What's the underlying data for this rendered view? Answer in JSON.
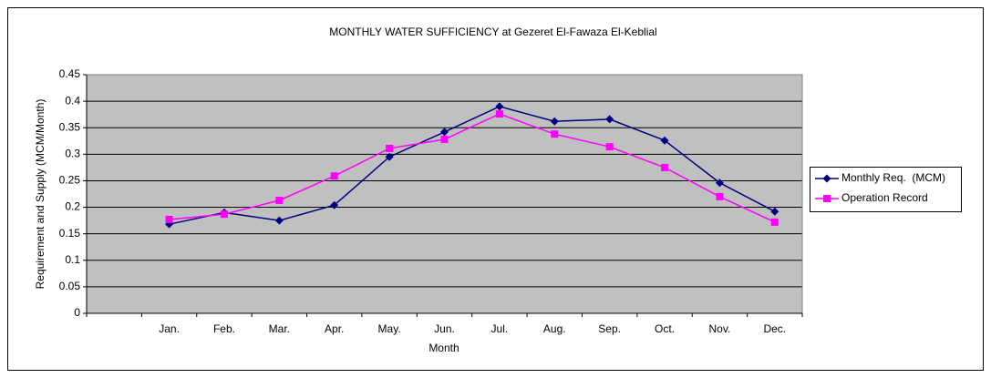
{
  "chart_data": {
    "type": "line",
    "title": "MONTHLY WATER SUFFICIENCY at Gezeret El-Fawaza El-Keblial",
    "xlabel": "Month",
    "ylabel": "Requirement and Supply (MCM/Month)",
    "categories": [
      null,
      "Jan.",
      "Feb.",
      "Mar.",
      "Apr.",
      "May.",
      "Jun.",
      "Jul.",
      "Aug.",
      "Sep.",
      "Oct.",
      "Nov.",
      "Dec."
    ],
    "series": [
      {
        "name": "Monthly Req.  (MCM)",
        "color": "#000080",
        "marker": "diamond",
        "values": [
          null,
          0.168,
          0.19,
          0.175,
          0.204,
          0.295,
          0.342,
          0.39,
          0.362,
          0.366,
          0.326,
          0.246,
          0.192
        ]
      },
      {
        "name": "Operation Record",
        "color": "#ff00ff",
        "marker": "square",
        "values": [
          null,
          0.177,
          0.187,
          0.213,
          0.259,
          0.311,
          0.328,
          0.376,
          0.338,
          0.314,
          0.275,
          0.22,
          0.172
        ]
      }
    ],
    "ylim": [
      0,
      0.45
    ],
    "yticks": [
      0,
      0.05,
      0.1,
      0.15,
      0.2,
      0.25,
      0.3,
      0.35,
      0.4,
      0.45
    ],
    "grid": true,
    "legend": "right"
  }
}
